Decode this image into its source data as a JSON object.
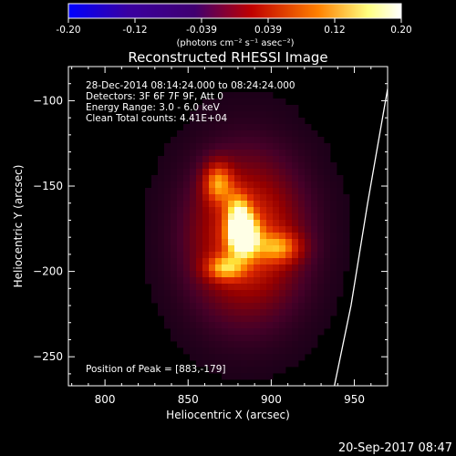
{
  "chart_data": {
    "type": "heatmap",
    "title": "Reconstructed RHESSI Image",
    "xlabel": "Heliocentric X (arcsec)",
    "ylabel": "Heliocentric Y (arcsec)",
    "xlim": [
      778,
      970
    ],
    "ylim": [
      -267,
      -80
    ],
    "xticks": [
      800,
      850,
      900,
      950
    ],
    "yticks": [
      -100,
      -150,
      -200,
      -250
    ],
    "colorbar": {
      "range": [
        -0.2,
        0.2
      ],
      "ticks": [
        "-0.20",
        "-0.12",
        "-0.039",
        "0.039",
        "0.12",
        "0.20"
      ],
      "label": "(photons cm⁻² s⁻¹ asec⁻²)",
      "colors": [
        "#0000ff",
        "#3a00a0",
        "#400070",
        "#c00000",
        "#ff8000",
        "#ffff80",
        "#ffffff"
      ]
    },
    "annotations": [
      "28-Dec-2014 08:14:24.000 to 08:24:24.000",
      "Detectors: 3F 6F 7F 9F, Att 0",
      "Energy Range: 3.0 - 6.0 keV",
      "Clean    Total counts: 4.41E+04"
    ],
    "peak_label": "Position of Peak = [883,-179]",
    "peak": [
      883,
      -179
    ],
    "sources": [
      {
        "x": 883,
        "y": -179,
        "amp": 1.0,
        "sx": 6,
        "sy": 8
      },
      {
        "x": 868,
        "y": -148,
        "amp": 0.55,
        "sx": 6,
        "sy": 8
      },
      {
        "x": 872,
        "y": -198,
        "amp": 0.5,
        "sx": 8,
        "sy": 5
      },
      {
        "x": 905,
        "y": -186,
        "amp": 0.45,
        "sx": 9,
        "sy": 6
      },
      {
        "x": 880,
        "y": -165,
        "amp": 0.45,
        "sx": 5,
        "sy": 8
      },
      {
        "x": 885,
        "y": -180,
        "amp": 0.55,
        "sx": 22,
        "sy": 30
      }
    ],
    "limb_curve": [
      [
        970,
        -93
      ],
      [
        958,
        -160
      ],
      [
        948,
        -220
      ],
      [
        938,
        -267
      ]
    ],
    "timestamp": "20-Sep-2017 08:47"
  }
}
